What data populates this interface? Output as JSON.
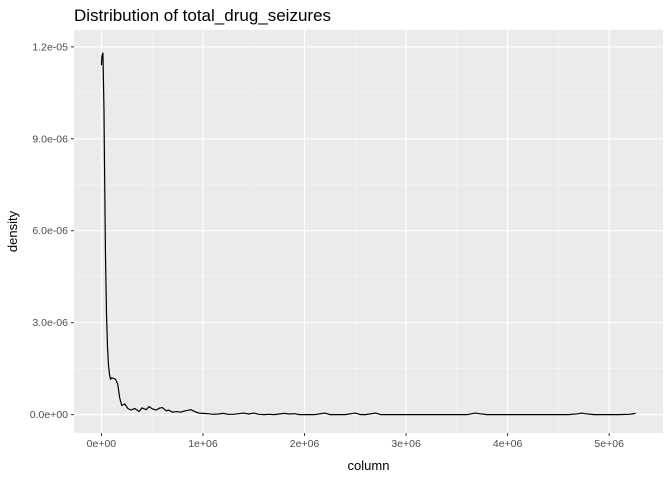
{
  "chart_data": {
    "type": "line",
    "title": "Distribution of total_drug_seizures",
    "xlabel": "column",
    "ylabel": "density",
    "x_ticks": [
      {
        "value": 0,
        "label": "0e+00"
      },
      {
        "value": 1000000,
        "label": "1e+06"
      },
      {
        "value": 2000000,
        "label": "2e+06"
      },
      {
        "value": 3000000,
        "label": "3e+06"
      },
      {
        "value": 4000000,
        "label": "4e+06"
      },
      {
        "value": 5000000,
        "label": "5e+06"
      }
    ],
    "y_ticks": [
      {
        "value": 0,
        "label": "0.0e+00"
      },
      {
        "value": 3e-06,
        "label": "3.0e-06"
      },
      {
        "value": 6e-06,
        "label": "6.0e-06"
      },
      {
        "value": 9e-06,
        "label": "9.0e-06"
      },
      {
        "value": 1.2e-05,
        "label": "1.2e-05"
      }
    ],
    "xlim": [
      -270000,
      5530000
    ],
    "ylim": [
      -6e-07,
      1.255e-05
    ],
    "grid": true,
    "legend": "none",
    "series": [
      {
        "color": "#000000",
        "x": [
          0,
          5000,
          15000,
          25000,
          30000,
          40000,
          50000,
          60000,
          70000,
          80000,
          90000,
          100000,
          120000,
          140000,
          160000,
          180000,
          200000,
          230000,
          260000,
          290000,
          330000,
          370000,
          400000,
          440000,
          470000,
          500000,
          540000,
          570000,
          600000,
          640000,
          660000,
          700000,
          740000,
          780000,
          820000,
          880000,
          920000,
          960000,
          1000000,
          1050000,
          1100000,
          1150000,
          1200000,
          1250000,
          1300000,
          1350000,
          1400000,
          1450000,
          1500000,
          1550000,
          1600000,
          1650000,
          1700000,
          1750000,
          1800000,
          1850000,
          1900000,
          1950000,
          2000000,
          2100000,
          2200000,
          2250000,
          2300000,
          2400000,
          2500000,
          2550000,
          2600000,
          2700000,
          2750000,
          2800000,
          3000000,
          3200000,
          3400000,
          3600000,
          3650000,
          3680000,
          3720000,
          3800000,
          4000000,
          4200000,
          4400000,
          4600000,
          4700000,
          4730000,
          4760000,
          4850000,
          5000000,
          5100000,
          5200000,
          5260000
        ],
        "y": [
          1.14e-05,
          1.17e-05,
          1.18e-05,
          1e-05,
          8.3e-06,
          5.2e-06,
          3.3e-06,
          2.2e-06,
          1.6e-06,
          1.3e-06,
          1.15e-06,
          1.2e-06,
          1.18e-06,
          1.15e-06,
          1e-06,
          5.5e-07,
          3e-07,
          3.5e-07,
          2e-07,
          1.5e-07,
          2e-07,
          1e-07,
          2.2e-07,
          1.6e-07,
          2.6e-07,
          1.9e-07,
          1.5e-07,
          2.1e-07,
          2.3e-07,
          1.2e-07,
          1.5e-07,
          8e-08,
          1e-07,
          8e-08,
          1.2e-07,
          1.6e-07,
          1e-07,
          5e-08,
          4e-08,
          3e-08,
          1e-08,
          2e-08,
          4e-08,
          1e-08,
          1e-08,
          3e-08,
          5e-08,
          2e-08,
          5e-08,
          1e-08,
          0,
          1e-08,
          0,
          2e-08,
          4e-08,
          2e-08,
          3e-08,
          0,
          0,
          0,
          5e-08,
          0,
          0,
          0,
          5e-08,
          0,
          0,
          5e-08,
          0,
          0,
          0,
          0,
          0,
          0,
          3e-08,
          5e-08,
          3e-08,
          0,
          0,
          0,
          0,
          0,
          3e-08,
          5e-08,
          3e-08,
          0,
          0,
          0,
          1e-08,
          4e-08
        ]
      }
    ]
  }
}
